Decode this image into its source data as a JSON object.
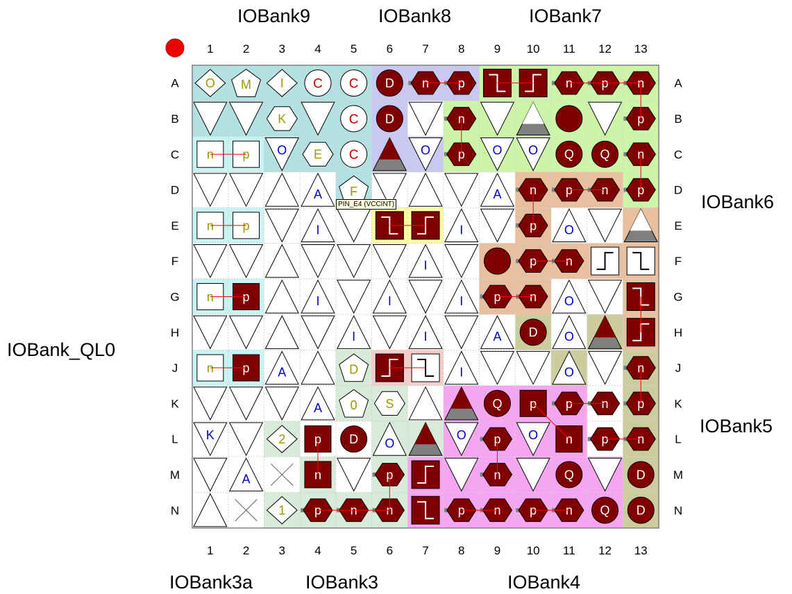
{
  "bank_labels": {
    "top": [
      "IOBank9",
      "IOBank8",
      "IOBank7"
    ],
    "right": [
      "IOBank6",
      "IOBank5"
    ],
    "left": [
      "IOBank_QL0"
    ],
    "bottom": [
      "IOBank3a",
      "IOBank3",
      "IOBank4"
    ]
  },
  "columns": [
    "1",
    "2",
    "3",
    "4",
    "5",
    "6",
    "7",
    "8",
    "9",
    "10",
    "11",
    "12",
    "13"
  ],
  "rows": [
    "A",
    "B",
    "C",
    "D",
    "E",
    "F",
    "G",
    "H",
    "J",
    "K",
    "L",
    "M",
    "N"
  ],
  "tooltip": "PIN_E4 (VCCINT)",
  "colors": {
    "bank9": "#b3e0e0",
    "bank8": "#c8c8f0",
    "bank7": "#ccf5a8",
    "bank6": "#e8c0a0",
    "bank5": "#cccc9e",
    "bank4": "#f5a6f0",
    "bank3": "#d8ead8",
    "bank3a": "#c8f4f4",
    "pll_yellow": "#ffffa0",
    "pll_pink": "#f5cccc",
    "dark_red": "#800000",
    "grid": "#c8c8c8",
    "corner_marker": "#ee0000"
  },
  "pins": [
    {
      "p": "A1",
      "s": "diamond",
      "t": "O",
      "c": "olive"
    },
    {
      "p": "A2",
      "s": "pentagon",
      "t": "M",
      "c": "olive"
    },
    {
      "p": "A3",
      "s": "diamond",
      "t": "I",
      "c": "olive"
    },
    {
      "p": "A4",
      "s": "circle",
      "t": "C",
      "c": "red"
    },
    {
      "p": "A5",
      "s": "circle",
      "t": "C",
      "c": "red"
    },
    {
      "p": "A6",
      "s": "dcircle",
      "t": "D"
    },
    {
      "p": "A7",
      "s": "dhexL",
      "t": "n"
    },
    {
      "p": "A8",
      "s": "dhexR",
      "t": "p"
    },
    {
      "p": "A9",
      "s": "dstepDown"
    },
    {
      "p": "A10",
      "s": "dstepUp"
    },
    {
      "p": "A11",
      "s": "dhexL",
      "t": "n"
    },
    {
      "p": "A12",
      "s": "dhexL",
      "t": "p"
    },
    {
      "p": "A13",
      "s": "dhexL",
      "t": "n"
    },
    {
      "p": "B1",
      "s": "tdown"
    },
    {
      "p": "B2",
      "s": "tdown"
    },
    {
      "p": "B3",
      "s": "hex",
      "t": "K",
      "c": "olive"
    },
    {
      "p": "B4",
      "s": "tdown"
    },
    {
      "p": "B5",
      "s": "circle",
      "t": "C",
      "c": "red"
    },
    {
      "p": "B6",
      "s": "dcircle",
      "t": "D"
    },
    {
      "p": "B7",
      "s": "tdown"
    },
    {
      "p": "B8",
      "s": "dhexL",
      "t": "n"
    },
    {
      "p": "B9",
      "s": "tdown"
    },
    {
      "p": "B10",
      "s": "tupGray"
    },
    {
      "p": "B11",
      "s": "dcircle",
      "t": ""
    },
    {
      "p": "B12",
      "s": "tdown"
    },
    {
      "p": "B13",
      "s": "dhexL",
      "t": "p"
    },
    {
      "p": "C1",
      "s": "square",
      "t": "n",
      "c": "olive"
    },
    {
      "p": "C2",
      "s": "square",
      "t": "p",
      "c": "olive"
    },
    {
      "p": "C3",
      "s": "tdown",
      "t": "O",
      "c": "blue"
    },
    {
      "p": "C4",
      "s": "hex",
      "t": "E",
      "c": "olive"
    },
    {
      "p": "C5",
      "s": "circle",
      "t": "C",
      "c": "red"
    },
    {
      "p": "C6",
      "s": "tupRed"
    },
    {
      "p": "C7",
      "s": "tdown",
      "t": "O",
      "c": "blue"
    },
    {
      "p": "C8",
      "s": "dhexL",
      "t": "p"
    },
    {
      "p": "C9",
      "s": "tdown",
      "t": "O",
      "c": "blue"
    },
    {
      "p": "C10",
      "s": "tdown",
      "t": "O",
      "c": "blue"
    },
    {
      "p": "C11",
      "s": "dcircle",
      "t": "Q"
    },
    {
      "p": "C12",
      "s": "dcircle",
      "t": "Q"
    },
    {
      "p": "C13",
      "s": "dhexL",
      "t": "n"
    },
    {
      "p": "D1",
      "s": "tdown"
    },
    {
      "p": "D2",
      "s": "tdown"
    },
    {
      "p": "D3",
      "s": "tup"
    },
    {
      "p": "D4",
      "s": "tup",
      "t": "A",
      "c": "blue"
    },
    {
      "p": "D5",
      "s": "pentagon",
      "t": "F",
      "c": "olive"
    },
    {
      "p": "D6",
      "s": "tdown"
    },
    {
      "p": "D7",
      "s": "tup"
    },
    {
      "p": "D8",
      "s": "tdown"
    },
    {
      "p": "D9",
      "s": "tup",
      "t": "A",
      "c": "blue"
    },
    {
      "p": "D10",
      "s": "dhexL",
      "t": "n"
    },
    {
      "p": "D11",
      "s": "dhexL",
      "t": "p"
    },
    {
      "p": "D12",
      "s": "dhexL",
      "t": "n"
    },
    {
      "p": "D13",
      "s": "dhexL",
      "t": "p"
    },
    {
      "p": "E1",
      "s": "square",
      "t": "n",
      "c": "olive"
    },
    {
      "p": "E2",
      "s": "square",
      "t": "p",
      "c": "olive"
    },
    {
      "p": "E3",
      "s": "tdown"
    },
    {
      "p": "E4",
      "s": "tup",
      "t": "I",
      "c": "blue"
    },
    {
      "p": "E5",
      "s": "tdown"
    },
    {
      "p": "E6",
      "s": "dstepDown"
    },
    {
      "p": "E7",
      "s": "dstepUp"
    },
    {
      "p": "E8",
      "s": "tup",
      "t": "I",
      "c": "blue"
    },
    {
      "p": "E9",
      "s": "tdown"
    },
    {
      "p": "E10",
      "s": "dhexL",
      "t": "p"
    },
    {
      "p": "E11",
      "s": "tup",
      "t": "O",
      "c": "blue"
    },
    {
      "p": "E12",
      "s": "tdown"
    },
    {
      "p": "E13",
      "s": "tupGray"
    },
    {
      "p": "F1",
      "s": "tdown"
    },
    {
      "p": "F2",
      "s": "tdown"
    },
    {
      "p": "F3",
      "s": "tup"
    },
    {
      "p": "F4",
      "s": "tdown"
    },
    {
      "p": "F5",
      "s": "tdown"
    },
    {
      "p": "F6",
      "s": "tdown"
    },
    {
      "p": "F7",
      "s": "tup",
      "t": "I",
      "c": "blue"
    },
    {
      "p": "F8",
      "s": "tdown"
    },
    {
      "p": "F9",
      "s": "dcircle",
      "t": ""
    },
    {
      "p": "F10",
      "s": "dhexL",
      "t": "p"
    },
    {
      "p": "F11",
      "s": "dhexL",
      "t": "n"
    },
    {
      "p": "F12",
      "s": "stepUp"
    },
    {
      "p": "F13",
      "s": "stepDown"
    },
    {
      "p": "G1",
      "s": "square",
      "t": "n",
      "c": "olive"
    },
    {
      "p": "G2",
      "s": "dsquare",
      "t": "p"
    },
    {
      "p": "G3",
      "s": "tup"
    },
    {
      "p": "G4",
      "s": "tup",
      "t": "I",
      "c": "blue"
    },
    {
      "p": "G5",
      "s": "tdown"
    },
    {
      "p": "G6",
      "s": "tup",
      "t": "I",
      "c": "blue"
    },
    {
      "p": "G7",
      "s": "tdown"
    },
    {
      "p": "G8",
      "s": "tup",
      "t": "I",
      "c": "blue"
    },
    {
      "p": "G9",
      "s": "dhexL",
      "t": "p"
    },
    {
      "p": "G10",
      "s": "dhexL",
      "t": "n"
    },
    {
      "p": "G11",
      "s": "tup",
      "t": "O",
      "c": "blue"
    },
    {
      "p": "G12",
      "s": "tdown"
    },
    {
      "p": "G13",
      "s": "dstepDown"
    },
    {
      "p": "H1",
      "s": "tdown"
    },
    {
      "p": "H2",
      "s": "tdown"
    },
    {
      "p": "H3",
      "s": "tup"
    },
    {
      "p": "H4",
      "s": "tdown"
    },
    {
      "p": "H5",
      "s": "tup",
      "t": "I",
      "c": "blue"
    },
    {
      "p": "H6",
      "s": "tdown"
    },
    {
      "p": "H7",
      "s": "tup",
      "t": "I",
      "c": "blue"
    },
    {
      "p": "H8",
      "s": "tdown"
    },
    {
      "p": "H9",
      "s": "tup",
      "t": "A",
      "c": "blue"
    },
    {
      "p": "H10",
      "s": "dcircle",
      "t": "D"
    },
    {
      "p": "H11",
      "s": "tup",
      "t": "O",
      "c": "blue"
    },
    {
      "p": "H12",
      "s": "tupRed"
    },
    {
      "p": "H13",
      "s": "dstepUp"
    },
    {
      "p": "J1",
      "s": "square",
      "t": "n",
      "c": "olive"
    },
    {
      "p": "J2",
      "s": "dsquare",
      "t": "p"
    },
    {
      "p": "J3",
      "s": "tup",
      "t": "A",
      "c": "blue"
    },
    {
      "p": "J4",
      "s": "tup"
    },
    {
      "p": "J5",
      "s": "pentagon",
      "t": "D",
      "c": "olive"
    },
    {
      "p": "J6",
      "s": "dstepUp"
    },
    {
      "p": "J7",
      "s": "stepDown"
    },
    {
      "p": "J8",
      "s": "tup",
      "t": "I",
      "c": "blue"
    },
    {
      "p": "J9",
      "s": "tdown"
    },
    {
      "p": "J10",
      "s": "tdown"
    },
    {
      "p": "J11",
      "s": "tup",
      "t": "O",
      "c": "blue"
    },
    {
      "p": "J12",
      "s": "tdown"
    },
    {
      "p": "J13",
      "s": "dhexL",
      "t": "n"
    },
    {
      "p": "K1",
      "s": "tdown"
    },
    {
      "p": "K2",
      "s": "tdown"
    },
    {
      "p": "K3",
      "s": "tdown"
    },
    {
      "p": "K4",
      "s": "tup",
      "t": "A",
      "c": "blue"
    },
    {
      "p": "K5",
      "s": "pentagon",
      "t": "0",
      "c": "olive"
    },
    {
      "p": "K6",
      "s": "hex",
      "t": "S",
      "c": "olive"
    },
    {
      "p": "K7",
      "s": "tup"
    },
    {
      "p": "K8",
      "s": "tupRed"
    },
    {
      "p": "K9",
      "s": "dcircle",
      "t": "Q"
    },
    {
      "p": "K10",
      "s": "dsquare",
      "t": "p"
    },
    {
      "p": "K11",
      "s": "dhexL",
      "t": "p"
    },
    {
      "p": "K12",
      "s": "dhexL",
      "t": "n"
    },
    {
      "p": "K13",
      "s": "dhexL",
      "t": "p"
    },
    {
      "p": "L1",
      "s": "tdown",
      "t": "K",
      "c": "blue"
    },
    {
      "p": "L2",
      "s": "tdown"
    },
    {
      "p": "L3",
      "s": "diamond",
      "t": "2",
      "c": "olive"
    },
    {
      "p": "L4",
      "s": "dsquare",
      "t": "p"
    },
    {
      "p": "L5",
      "s": "dcircle",
      "t": "D"
    },
    {
      "p": "L6",
      "s": "tup",
      "t": "O",
      "c": "blue"
    },
    {
      "p": "L7",
      "s": "tupRed"
    },
    {
      "p": "L8",
      "s": "tdown",
      "t": "O",
      "c": "blue"
    },
    {
      "p": "L9",
      "s": "dhexL",
      "t": "p"
    },
    {
      "p": "L10",
      "s": "tdown",
      "t": "O",
      "c": "blue"
    },
    {
      "p": "L11",
      "s": "dsquare",
      "t": "n"
    },
    {
      "p": "L12",
      "s": "dhexL",
      "t": "p"
    },
    {
      "p": "L13",
      "s": "dhexL",
      "t": "n"
    },
    {
      "p": "M1",
      "s": "tdown"
    },
    {
      "p": "M2",
      "s": "tup",
      "t": "A",
      "c": "blue"
    },
    {
      "p": "M3",
      "s": "cross"
    },
    {
      "p": "M4",
      "s": "dsquare",
      "t": "n"
    },
    {
      "p": "M5",
      "s": "tdown"
    },
    {
      "p": "M6",
      "s": "dhexL",
      "t": "p"
    },
    {
      "p": "M7",
      "s": "dstepUp"
    },
    {
      "p": "M8",
      "s": "tdown"
    },
    {
      "p": "M9",
      "s": "dhexL",
      "t": "n"
    },
    {
      "p": "M10",
      "s": "tdown"
    },
    {
      "p": "M11",
      "s": "dcircle",
      "t": "Q"
    },
    {
      "p": "M12",
      "s": "tdown"
    },
    {
      "p": "M13",
      "s": "dcircle",
      "t": "D"
    },
    {
      "p": "N1",
      "s": "tup"
    },
    {
      "p": "N2",
      "s": "cross"
    },
    {
      "p": "N3",
      "s": "diamond",
      "t": "1",
      "c": "olive"
    },
    {
      "p": "N4",
      "s": "dhexL",
      "t": "p"
    },
    {
      "p": "N5",
      "s": "dhexL",
      "t": "n"
    },
    {
      "p": "N6",
      "s": "dhexL",
      "t": "n"
    },
    {
      "p": "N7",
      "s": "dstepDown"
    },
    {
      "p": "N8",
      "s": "dhexL",
      "t": "p"
    },
    {
      "p": "N9",
      "s": "dhexL",
      "t": "n"
    },
    {
      "p": "N10",
      "s": "dhexL",
      "t": "p"
    },
    {
      "p": "N11",
      "s": "dhexL",
      "t": "n"
    },
    {
      "p": "N12",
      "s": "dcircle",
      "t": "Q"
    },
    {
      "p": "N13",
      "s": "dcircle",
      "t": "D"
    }
  ],
  "pairs": [
    [
      "A7",
      "A8"
    ],
    [
      "A9",
      "A10"
    ],
    [
      "A11",
      "A12"
    ],
    [
      "A12",
      "A13"
    ],
    [
      "A13",
      "B13"
    ],
    [
      "B8",
      "C8"
    ],
    [
      "C13",
      "D13"
    ],
    [
      "C1",
      "C2"
    ],
    [
      "E1",
      "E2"
    ],
    [
      "G1",
      "G2"
    ],
    [
      "J1",
      "J2"
    ],
    [
      "D10",
      "E10"
    ],
    [
      "D11",
      "D12"
    ],
    [
      "E6",
      "E7"
    ],
    [
      "F10",
      "F11"
    ],
    [
      "G9",
      "G10"
    ],
    [
      "G13",
      "H13"
    ],
    [
      "J6",
      "J7"
    ],
    [
      "J13",
      "K13"
    ],
    [
      "K12",
      "K11"
    ],
    [
      "K10",
      "L11"
    ],
    [
      "L12",
      "L13"
    ],
    [
      "L4",
      "M4"
    ],
    [
      "L9",
      "M9"
    ],
    [
      "M6",
      "N6"
    ],
    [
      "N4",
      "N5"
    ],
    [
      "N5",
      "N6"
    ],
    [
      "N8",
      "N9"
    ],
    [
      "N10",
      "N11"
    ]
  ],
  "regions": [
    {
      "bank": "bank9",
      "cells": [
        "A1-A5",
        "B1-B5",
        "C1-C5",
        "D5"
      ]
    },
    {
      "bank": "bank8",
      "cells": [
        "A6-A8",
        "B6",
        "C6-C7"
      ]
    },
    {
      "bank": "bank7",
      "cells": [
        "A9-A13",
        "B8-B13",
        "C8-C13",
        "D13"
      ]
    },
    {
      "bank": "bank6",
      "cells": [
        "D10-D12",
        "E10",
        "E13",
        "F9-F13",
        "G9-G10",
        "G13",
        "H13"
      ]
    },
    {
      "bank": "bank5",
      "cells": [
        "H10",
        "H12",
        "J11",
        "J13",
        "K13",
        "L13",
        "M13",
        "N13"
      ]
    },
    {
      "bank": "bank4",
      "cells": [
        "K8-K11",
        "L8-L11",
        "M7-M12",
        "N7-N12"
      ]
    },
    {
      "bank": "bank3",
      "cells": [
        "J5",
        "K5-K6",
        "L3",
        "L6-L7",
        "M4",
        "M6",
        "N3-N6"
      ]
    },
    {
      "bank": "bank3a",
      "cells": [
        "C1-C2",
        "E1-E2",
        "G1-G2",
        "J1-J2"
      ]
    },
    {
      "bank": "pll_yellow",
      "cells": [
        "E6-E7"
      ]
    },
    {
      "bank": "pll_pink",
      "cells": [
        "J6-J7"
      ]
    }
  ]
}
